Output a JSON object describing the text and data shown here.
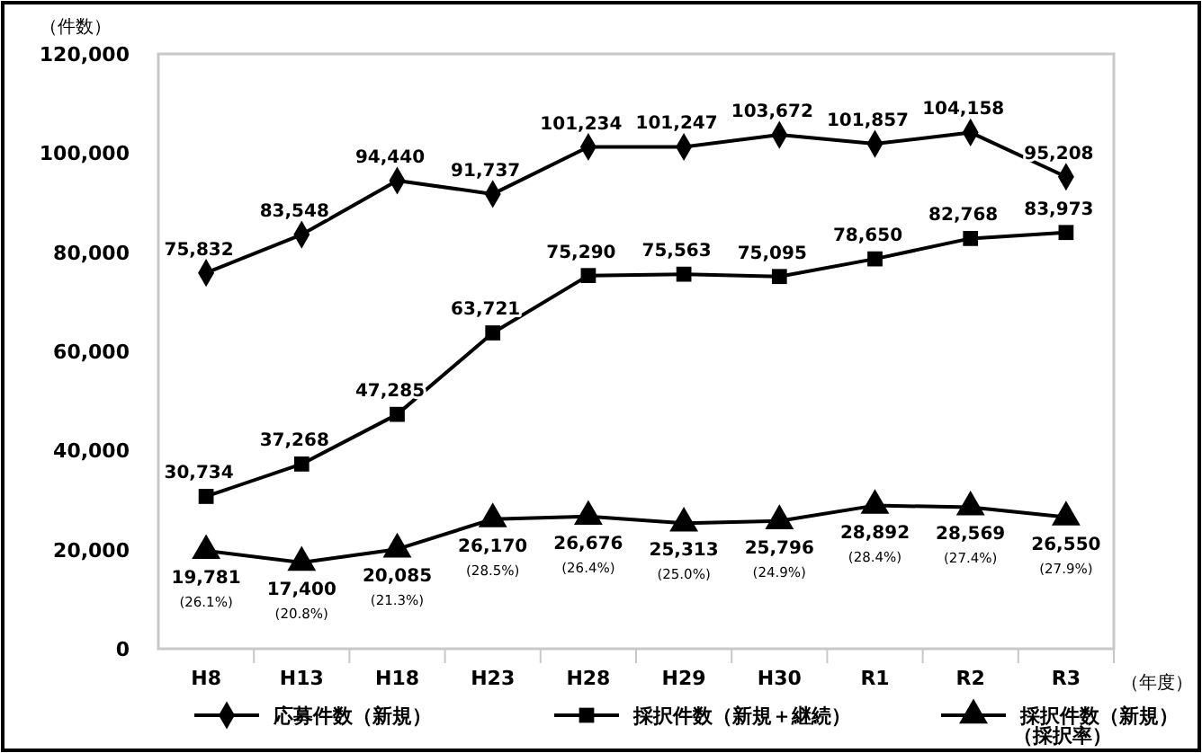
{
  "chart_data": {
    "type": "line",
    "ylabel": "（件数）",
    "xlabel": "（年度）",
    "categories": [
      "H8",
      "H13",
      "H18",
      "H23",
      "H28",
      "H29",
      "H30",
      "R1",
      "R2",
      "R3"
    ],
    "ylim": [
      0,
      120000
    ],
    "yticks": [
      {
        "value": 0,
        "label": "0"
      },
      {
        "value": 20000,
        "label": "20,000"
      },
      {
        "value": 40000,
        "label": "40,000"
      },
      {
        "value": 60000,
        "label": "60,000"
      },
      {
        "value": 80000,
        "label": "80,000"
      },
      {
        "value": 100000,
        "label": "100,000"
      },
      {
        "value": 120000,
        "label": "120,000"
      }
    ],
    "legend": "bottom",
    "series": [
      {
        "name": "応募件数（新規）",
        "color": "#000000",
        "marker": "diamond",
        "values": [
          75832,
          83548,
          94440,
          91737,
          101234,
          101247,
          103672,
          101857,
          104158,
          95208
        ],
        "value_labels": [
          "75,832",
          "83,548",
          "94,440",
          "91,737",
          "101,234",
          "101,247",
          "103,672",
          "101,857",
          "104,158",
          "95,208"
        ]
      },
      {
        "name": "採択件数（新規＋継続）",
        "color": "#000000",
        "marker": "square",
        "values": [
          30734,
          37268,
          47285,
          63721,
          75290,
          75563,
          75095,
          78650,
          82768,
          83973
        ],
        "value_labels": [
          "30,734",
          "37,268",
          "47,285",
          "63,721",
          "75,290",
          "75,563",
          "75,095",
          "78,650",
          "82,768",
          "83,973"
        ]
      },
      {
        "name": "採択件数（新規）（採択率）",
        "color": "#000000",
        "marker": "triangle",
        "values": [
          19781,
          17400,
          20085,
          26170,
          26676,
          25313,
          25796,
          28892,
          28569,
          26550
        ],
        "value_labels": [
          "19,781\n(26.1%)",
          "17,400\n(20.8%)",
          "20,085\n(21.3%)",
          "26,170\n(28.5%)",
          "26,676\n(26.4%)",
          "25,313\n(25.0%)",
          "25,796\n(24.9%)",
          "28,892\n(28.4%)",
          "28,569\n(27.4%)",
          "26,550\n(27.9%)"
        ]
      }
    ]
  }
}
